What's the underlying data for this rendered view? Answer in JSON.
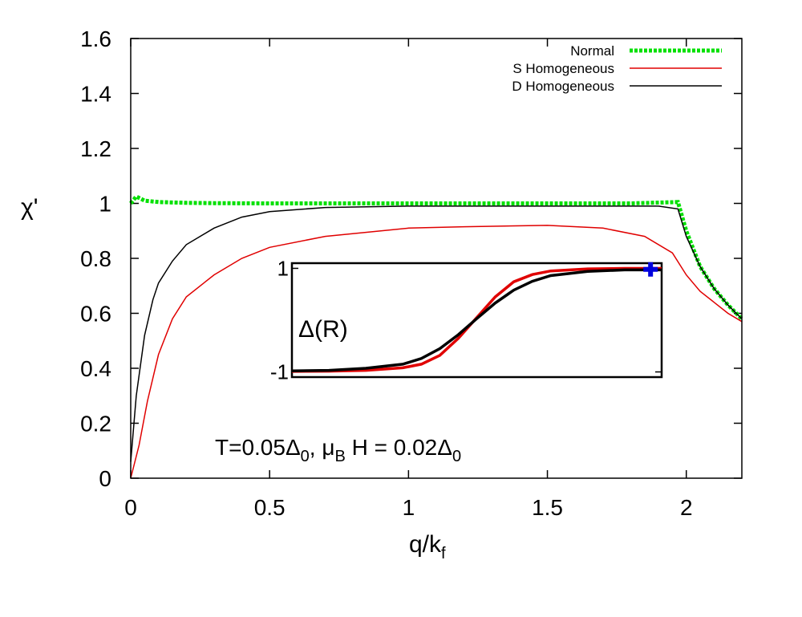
{
  "chart_data": {
    "type": "line",
    "xlabel": "q/k",
    "xlabel_sub": "f",
    "ylabel": "χ'",
    "xlim": [
      0,
      2.2
    ],
    "ylim": [
      0,
      1.6
    ],
    "x_ticks": [
      0,
      0.5,
      1,
      1.5,
      2
    ],
    "x_tick_labels": [
      "0",
      "0.5",
      "1",
      "1.5",
      "2"
    ],
    "y_ticks": [
      0,
      0.2,
      0.4,
      0.6,
      0.8,
      1.0,
      1.2,
      1.4,
      1.6
    ],
    "y_tick_labels": [
      "0",
      "0.2",
      "0.4",
      "0.6",
      "0.8",
      "1",
      "1.2",
      "1.4",
      "1.6"
    ],
    "grid": false,
    "legend_position": "top-right",
    "annotation": {
      "parts": [
        "T=0.05Δ",
        "0",
        ",  μ",
        "B",
        " H = 0.02Δ",
        "0"
      ]
    },
    "series": [
      {
        "name": "Normal",
        "color": "#00e000",
        "style": "dotted-thick",
        "x": [
          0,
          0.02,
          0.05,
          0.1,
          0.2,
          0.3,
          0.5,
          0.8,
          1.0,
          1.3,
          1.6,
          1.8,
          1.97,
          2.0,
          2.05,
          2.1,
          2.15,
          2.2
        ],
        "y": [
          1.0,
          1.025,
          1.01,
          1.005,
          1.002,
          1.001,
          1.0,
          1.0,
          1.0,
          1.0,
          1.0,
          1.0,
          1.005,
          0.9,
          0.77,
          0.69,
          0.63,
          0.58
        ]
      },
      {
        "name": "S Homogeneous",
        "color": "#e00000",
        "style": "solid",
        "x": [
          0,
          0.03,
          0.06,
          0.1,
          0.15,
          0.2,
          0.3,
          0.4,
          0.5,
          0.7,
          1.0,
          1.2,
          1.5,
          1.7,
          1.85,
          1.95,
          2.0,
          2.05,
          2.1,
          2.15,
          2.2
        ],
        "y": [
          0,
          0.12,
          0.28,
          0.45,
          0.58,
          0.66,
          0.74,
          0.8,
          0.84,
          0.88,
          0.91,
          0.915,
          0.92,
          0.91,
          0.88,
          0.82,
          0.74,
          0.68,
          0.64,
          0.6,
          0.57
        ]
      },
      {
        "name": "D Homogeneous",
        "color": "#000000",
        "style": "solid",
        "x": [
          0,
          0.02,
          0.05,
          0.08,
          0.1,
          0.15,
          0.2,
          0.3,
          0.4,
          0.5,
          0.7,
          1.0,
          1.3,
          1.6,
          1.9,
          1.97,
          2.0,
          2.05,
          2.1,
          2.15,
          2.2
        ],
        "y": [
          0.06,
          0.3,
          0.52,
          0.65,
          0.71,
          0.79,
          0.85,
          0.91,
          0.95,
          0.97,
          0.985,
          0.99,
          0.99,
          0.99,
          0.99,
          0.98,
          0.88,
          0.77,
          0.69,
          0.63,
          0.58
        ]
      }
    ],
    "inset": {
      "ylabel": "Δ(R)",
      "y_tick_labels": [
        "1",
        "-1"
      ],
      "y_ticks": [
        1,
        -1
      ],
      "xlim": [
        0,
        1
      ],
      "ylim": [
        -1.1,
        1.1
      ],
      "marker": {
        "x": 0.97,
        "y": 0.98,
        "color": "#0000dd",
        "shape": "cross"
      },
      "series": [
        {
          "color": "#e00000",
          "x": [
            0,
            0.1,
            0.2,
            0.3,
            0.35,
            0.4,
            0.45,
            0.5,
            0.55,
            0.6,
            0.65,
            0.7,
            0.8,
            0.9,
            1.0
          ],
          "y": [
            -0.99,
            -0.985,
            -0.97,
            -0.92,
            -0.85,
            -0.68,
            -0.35,
            0.05,
            0.45,
            0.74,
            0.88,
            0.95,
            0.99,
            1.0,
            1.0
          ]
        },
        {
          "color": "#000000",
          "x": [
            0,
            0.1,
            0.2,
            0.3,
            0.35,
            0.4,
            0.45,
            0.5,
            0.55,
            0.6,
            0.65,
            0.7,
            0.8,
            0.9,
            1.0
          ],
          "y": [
            -0.98,
            -0.97,
            -0.93,
            -0.85,
            -0.74,
            -0.55,
            -0.28,
            0.03,
            0.33,
            0.58,
            0.75,
            0.86,
            0.94,
            0.97,
            0.97
          ]
        }
      ]
    }
  }
}
